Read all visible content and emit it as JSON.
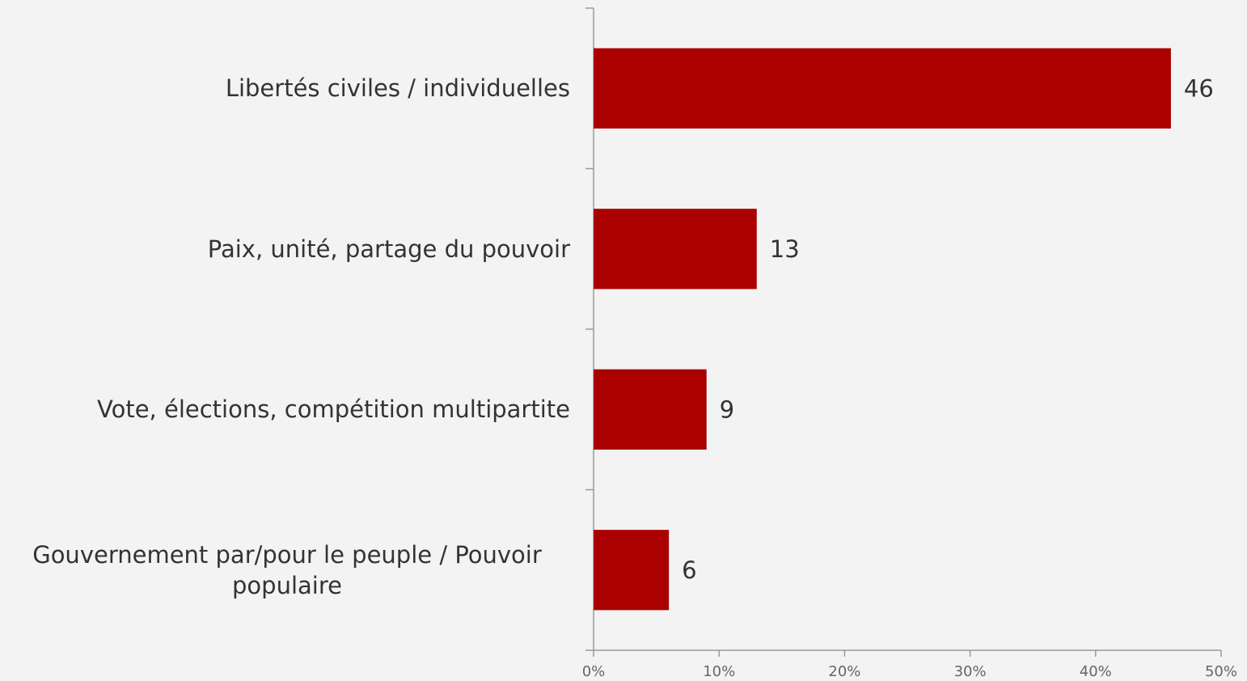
{
  "chart_data": {
    "type": "bar",
    "orientation": "horizontal",
    "categories": [
      "Libertés civiles / individuelles",
      "Paix, unité, partage du pouvoir",
      "Vote, élections, compétition multipartite",
      "Gouvernement par/pour le peuple / Pouvoir populaire"
    ],
    "values": [
      46,
      13,
      9,
      6
    ],
    "color": "#aa0000",
    "xlim": [
      0,
      50
    ],
    "xticks": [
      {
        "value": 0,
        "label": "0%"
      },
      {
        "value": 10,
        "label": "10%"
      },
      {
        "value": 20,
        "label": "20%"
      },
      {
        "value": 30,
        "label": "30%"
      },
      {
        "value": 40,
        "label": "40%"
      },
      {
        "value": 50,
        "label": "50%"
      }
    ]
  }
}
